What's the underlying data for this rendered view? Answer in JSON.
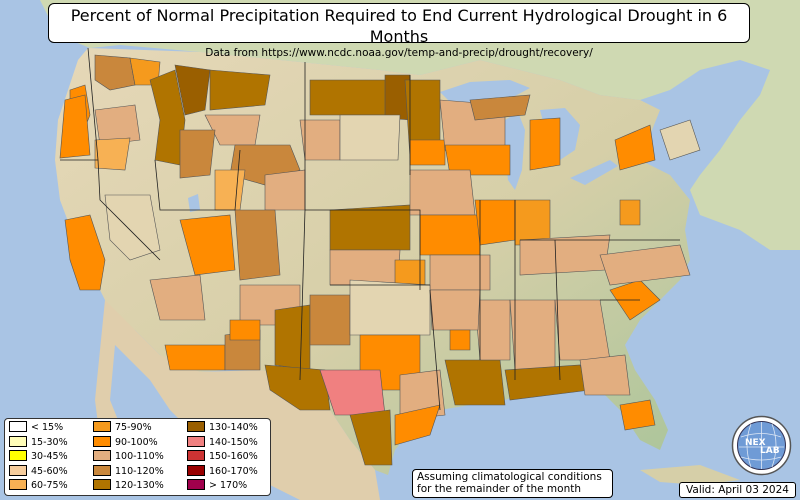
{
  "header": {
    "title": "Percent of Normal Precipitation Required to End Current Hydrological Drought in 6 Months",
    "subtitle": "Data from https://www.ncdc.noaa.gov/temp-and-precip/drought/recovery/"
  },
  "legend": [
    {
      "label": "< 15%",
      "color": "#ffffff"
    },
    {
      "label": "15-30%",
      "color": "#fffdb8"
    },
    {
      "label": "30-45%",
      "color": "#ffff00"
    },
    {
      "label": "45-60%",
      "color": "#f6cd9d"
    },
    {
      "label": "60-75%",
      "color": "#f7b154"
    },
    {
      "label": "75-90%",
      "color": "#f59a1d"
    },
    {
      "label": "90-100%",
      "color": "#ff8c00"
    },
    {
      "label": "100-110%",
      "color": "#e2ae80"
    },
    {
      "label": "110-120%",
      "color": "#c9873c"
    },
    {
      "label": "120-130%",
      "color": "#b07400"
    },
    {
      "label": "130-140%",
      "color": "#9a5f00"
    },
    {
      "label": "140-150%",
      "color": "#f08080"
    },
    {
      "label": "150-160%",
      "color": "#cc3333"
    },
    {
      "label": "160-170%",
      "color": "#990000"
    },
    {
      "label": "> 170%",
      "color": "#a0004c"
    }
  ],
  "note": {
    "line1": "Assuming climatological conditions",
    "line2": "for the remainder of the month"
  },
  "valid": "Valid: April 03 2024",
  "logo": {
    "text_a": "NEX",
    "text_b": "LAB",
    "icon": "nexlab-globe-logo"
  },
  "colors": {
    "ocean": "#a9c4e4",
    "land_base": "#e3d5b1",
    "land_green": "#b8c9a0"
  }
}
